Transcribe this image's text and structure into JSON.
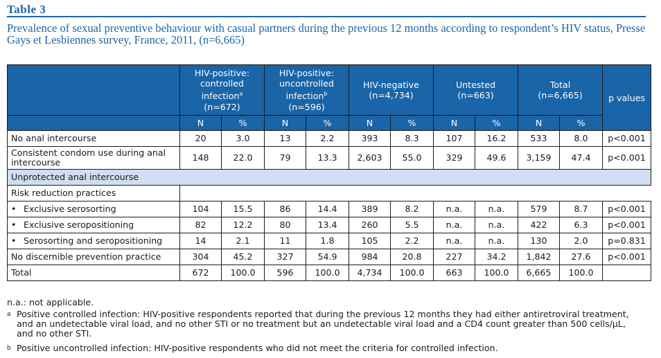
{
  "header": {
    "table_label": "Table 3",
    "caption": "Prevalence of sexual preventive behaviour with casual partners during the previous 12 months according to respondent’s HIV status, Presse Gays et Lesbiennes survey, France, 2011, (n=6,665)"
  },
  "columns": {
    "groups": [
      {
        "label": "HIV-positive: controlled infection",
        "sup": "a",
        "n": "(n=672)"
      },
      {
        "label": "HIV-positive: uncontrolled infection",
        "sup": "b",
        "n": "(n=596)"
      },
      {
        "label": "HIV-negative",
        "sup": "",
        "n": "(n=4,734)"
      },
      {
        "label": "Untested",
        "sup": "",
        "n": "(n=663)"
      },
      {
        "label": "Total",
        "sup": "",
        "n": "(n=6,665)"
      }
    ],
    "pvalue": "p values",
    "n": "N",
    "pct": "%"
  },
  "rows": [
    {
      "label": "No anal intercourse",
      "values": [
        "20",
        "3.0",
        "13",
        "2.2",
        "393",
        "8.3",
        "107",
        "16.2",
        "533",
        "8.0",
        "p<0.001"
      ]
    },
    {
      "label": "Consistent condom use during anal intercourse",
      "values": [
        "148",
        "22.0",
        "79",
        "13.3",
        "2,603",
        "55.0",
        "329",
        "49.6",
        "3,159",
        "47.4",
        "p<0.001"
      ]
    },
    {
      "section": "Unprotected anal intercourse"
    },
    {
      "label": "Risk reduction practices",
      "values": [
        "",
        "",
        "",
        "",
        "",
        "",
        "",
        "",
        "",
        "",
        ""
      ]
    },
    {
      "label": "Exclusive serosorting",
      "bullet": "•",
      "values": [
        "104",
        "15.5",
        "86",
        "14.4",
        "389",
        "8.2",
        "n.a.",
        "n.a.",
        "579",
        "8.7",
        "p<0.001"
      ]
    },
    {
      "label": "Exclusive seropositioning",
      "bullet": "•",
      "values": [
        "82",
        "12.2",
        "80",
        "13.4",
        "260",
        "5.5",
        "n.a.",
        "n.a.",
        "422",
        "6.3",
        "p<0.001"
      ]
    },
    {
      "label": "Serosorting and seropositioning",
      "bullet": "•",
      "values": [
        "14",
        "2.1",
        "11",
        "1.8",
        "105",
        "2.2",
        "n.a.",
        "n.a.",
        "130",
        "2.0",
        "p=0.831"
      ]
    },
    {
      "label": "No discernible prevention practice",
      "values": [
        "304",
        "45.2",
        "327",
        "54.9",
        "984",
        "20.8",
        "227",
        "34.2",
        "1,842",
        "27.6",
        "p<0.001"
      ]
    },
    {
      "label": "Total",
      "values": [
        "672",
        "100.0",
        "596",
        "100.0",
        "4,734",
        "100.0",
        "663",
        "100.0",
        "6,665",
        "100.0",
        ""
      ]
    }
  ],
  "footnotes": {
    "na": "n.a.: not applicable.",
    "a_mark": "a",
    "a": "Positive controlled infection: HIV-positive respondents reported that during the previous 12 months they had either antiretroviral treatment, and an undetectable viral load, and no other STI or no treatment but an undetectable viral load and a CD4 count greater than 500 cells/µL, and no other STI.",
    "b_mark": "b",
    "b": "Positive uncontrolled infection: HIV-positive respondents who did not meet the criteria for controlled infection."
  }
}
